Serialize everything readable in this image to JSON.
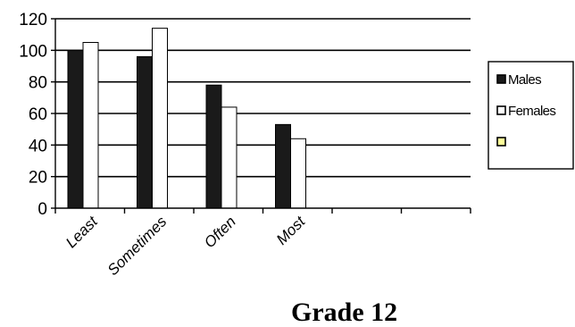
{
  "caption": "Grade 12",
  "chart_data": {
    "type": "bar",
    "title": "Grade 12",
    "categories": [
      "Least",
      "Sometimes",
      "Often",
      "Most",
      "",
      ""
    ],
    "series": [
      {
        "name": "Males",
        "values": [
          100,
          96,
          78,
          53,
          null,
          null
        ],
        "color": "#1a1a1a"
      },
      {
        "name": "Females",
        "values": [
          105,
          114,
          64,
          44,
          null,
          null
        ],
        "color": "#ffffff"
      },
      {
        "name": "",
        "values": [
          null,
          null,
          null,
          null,
          null,
          null
        ],
        "color": "#ffff99"
      }
    ],
    "ylim": [
      0,
      120
    ],
    "yticks": [
      0,
      20,
      40,
      60,
      80,
      100,
      120
    ],
    "grid": true,
    "legend": "right"
  }
}
